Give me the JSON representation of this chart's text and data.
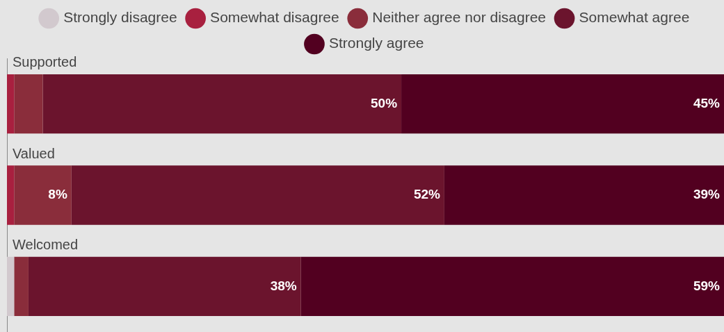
{
  "chart_data": {
    "type": "bar",
    "orientation": "horizontal",
    "stacked": true,
    "legend": "top",
    "categories": [
      "Supported",
      "Valued",
      "Welcomed"
    ],
    "series": [
      {
        "name": "Strongly disagree",
        "color": "#d2c9ce",
        "values": [
          0,
          0,
          1
        ],
        "value_labels": [
          null,
          null,
          null
        ]
      },
      {
        "name": "Somewhat disagree",
        "color": "#a8203f",
        "values": [
          1,
          1,
          0
        ],
        "value_labels": [
          null,
          null,
          null
        ]
      },
      {
        "name": "Neither agree nor disagree",
        "color": "#8a2d3b",
        "values": [
          4,
          8,
          2
        ],
        "value_labels": [
          null,
          "8%",
          null
        ]
      },
      {
        "name": "Somewhat agree",
        "color": "#6b142d",
        "values": [
          50,
          52,
          38
        ],
        "value_labels": [
          "50%",
          "52%",
          "38%"
        ]
      },
      {
        "name": "Strongly agree",
        "color": "#520020",
        "values": [
          45,
          39,
          59
        ],
        "value_labels": [
          "45%",
          "39%",
          "59%"
        ]
      }
    ]
  }
}
